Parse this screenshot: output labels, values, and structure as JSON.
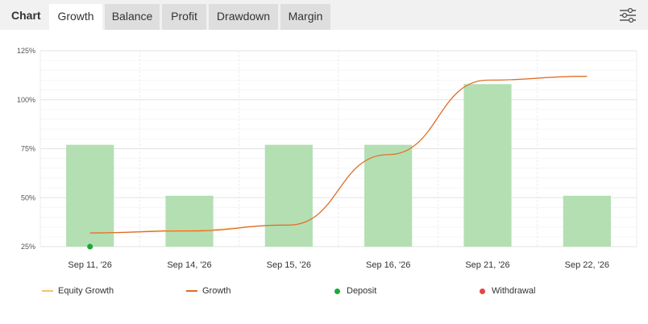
{
  "tabs": {
    "title": "Chart",
    "items": [
      {
        "label": "Growth",
        "active": true
      },
      {
        "label": "Balance",
        "active": false
      },
      {
        "label": "Profit",
        "active": false
      },
      {
        "label": "Drawdown",
        "active": false
      },
      {
        "label": "Margin",
        "active": false
      }
    ],
    "settings_icon": "sliders-icon"
  },
  "chart_data": {
    "type": "bar",
    "categories": [
      "Sep 11, '26",
      "Sep 14, '26",
      "Sep 15, '26",
      "Sep 16, '26",
      "Sep 21, '26",
      "Sep 22, '26"
    ],
    "yticks": [
      "25%",
      "50%",
      "75%",
      "100%",
      "125%"
    ],
    "ylim": [
      25,
      125
    ],
    "grid": true,
    "bars": {
      "values": [
        77,
        51,
        77,
        77,
        108,
        51
      ],
      "color": "#b3dfb3"
    },
    "growth_line": {
      "values": [
        32,
        33,
        36,
        72,
        110,
        112
      ],
      "color": "#e06a28"
    },
    "equity_growth_line": {
      "values": [
        32,
        33.5,
        36,
        72,
        110,
        112
      ],
      "color": "#f5c26b"
    },
    "deposits": [
      {
        "category_index": 0,
        "value": 25
      }
    ],
    "legend_position": "bottom"
  },
  "legend": [
    {
      "label": "Equity Growth",
      "color": "#f5c26b",
      "kind": "line"
    },
    {
      "label": "Growth",
      "color": "#e06a28",
      "kind": "line"
    },
    {
      "label": "Deposit",
      "color": "#1aa83a",
      "kind": "dot"
    },
    {
      "label": "Withdrawal",
      "color": "#e54545",
      "kind": "dot"
    }
  ]
}
